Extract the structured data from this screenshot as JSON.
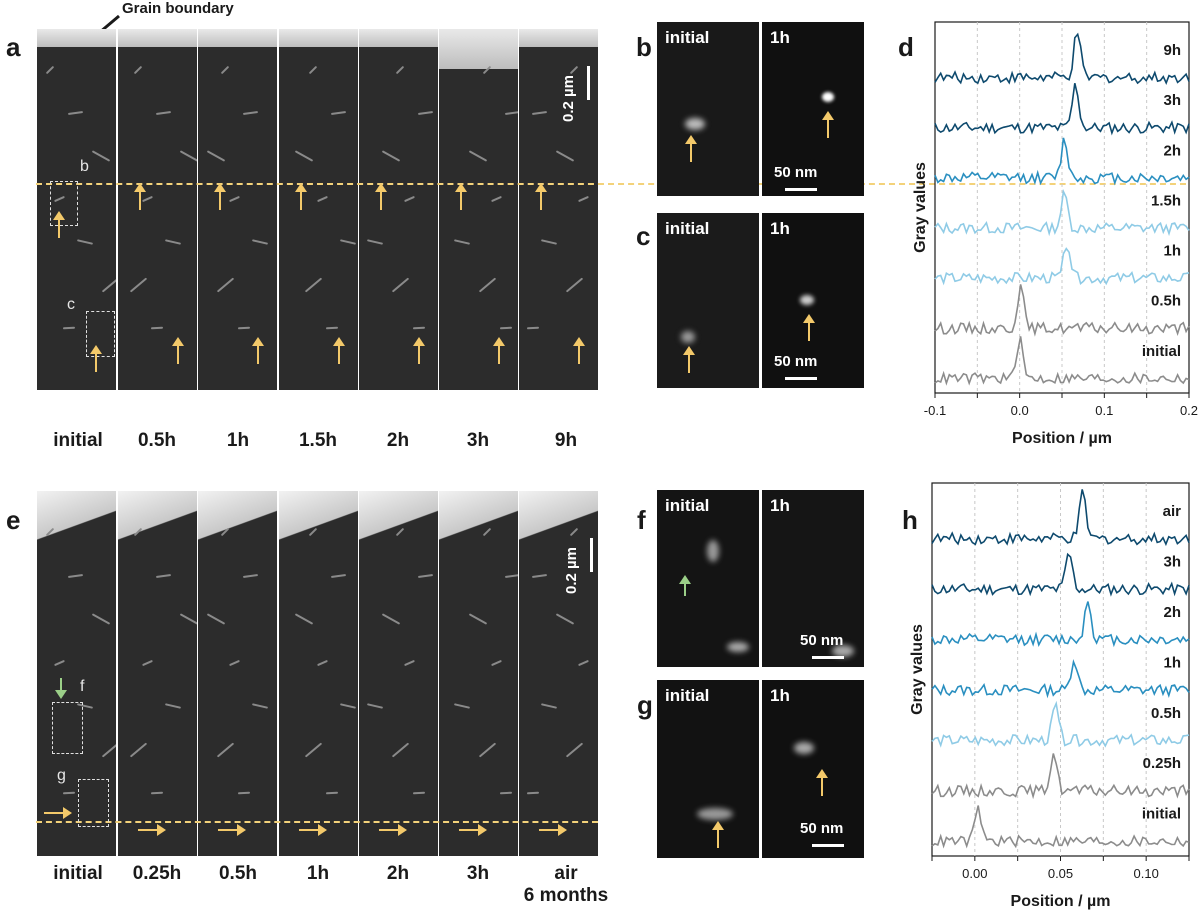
{
  "panel_a": {
    "letter": "a",
    "annotation": "Grain boundary",
    "scale_bar": "0.2 µm",
    "box_labels": [
      "b",
      "c"
    ],
    "frames": [
      "initial",
      "0.5h",
      "1h",
      "1.5h",
      "2h",
      "3h",
      "9h"
    ]
  },
  "panel_b": {
    "letter": "b",
    "left_label": "initial",
    "right_label": "1h",
    "scale_bar": "50 nm"
  },
  "panel_c": {
    "letter": "c",
    "left_label": "initial",
    "right_label": "1h",
    "scale_bar": "50 nm"
  },
  "panel_e": {
    "letter": "e",
    "scale_bar": "0.2 µm",
    "box_labels": [
      "f",
      "g"
    ],
    "frames": [
      "initial",
      "0.25h",
      "0.5h",
      "1h",
      "2h",
      "3h",
      "air"
    ],
    "last_frame_subtitle": "6 months"
  },
  "panel_f": {
    "letter": "f",
    "left_label": "initial",
    "right_label": "1h",
    "scale_bar": "50 nm"
  },
  "panel_g": {
    "letter": "g",
    "left_label": "initial",
    "right_label": "1h",
    "scale_bar": "50 nm"
  },
  "colors": {
    "profile_dark": "#0e4a6e",
    "profile_mid": "#2a8fc0",
    "profile_light": "#8fcbe6",
    "profile_gray": "#8c8c8c",
    "marker_yellow": "#f3c96a",
    "marker_green": "#9bcf88"
  },
  "chart_data": [
    {
      "panel": "d",
      "type": "line",
      "title": "",
      "xlabel": "Position / µm",
      "ylabel": "Gray values",
      "xlim": [
        -0.1,
        0.2
      ],
      "xticks": [
        -0.1,
        0.0,
        0.1,
        0.2
      ],
      "tick_labels": [
        "-0.1",
        "0.0",
        "0.1",
        "0.2"
      ],
      "grid": "vertical dashed",
      "series": [
        {
          "name": "9h",
          "peak_position": 0.068,
          "peak_height": 1.0
        },
        {
          "name": "3h",
          "peak_position": 0.066,
          "peak_height": 0.95
        },
        {
          "name": "2h",
          "peak_position": 0.053,
          "peak_height": 0.85
        },
        {
          "name": "1.5h",
          "peak_position": 0.053,
          "peak_height": 0.75
        },
        {
          "name": "1h",
          "peak_position": 0.056,
          "peak_height": 0.8
        },
        {
          "name": "0.5h",
          "peak_position": 0.001,
          "peak_height": 0.9
        },
        {
          "name": "initial",
          "peak_position": 0.0,
          "peak_height": 0.85
        }
      ]
    },
    {
      "panel": "h",
      "type": "line",
      "title": "",
      "xlabel": "Position / µm",
      "ylabel": "Gray values",
      "xlim": [
        -0.025,
        0.125
      ],
      "xticks": [
        0.0,
        0.05,
        0.1
      ],
      "tick_labels": [
        "0.00",
        "0.05",
        "0.10"
      ],
      "grid": "vertical dashed",
      "series": [
        {
          "name": "air",
          "peak_position": 0.063,
          "peak_height": 1.0
        },
        {
          "name": "3h",
          "peak_position": 0.055,
          "peak_height": 0.8
        },
        {
          "name": "2h",
          "peak_position": 0.066,
          "peak_height": 0.85
        },
        {
          "name": "1h",
          "peak_position": 0.058,
          "peak_height": 0.7
        },
        {
          "name": "0.5h",
          "peak_position": 0.047,
          "peak_height": 0.75
        },
        {
          "name": "0.25h",
          "peak_position": 0.046,
          "peak_height": 0.85
        },
        {
          "name": "initial",
          "peak_position": 0.002,
          "peak_height": 0.7
        }
      ]
    }
  ]
}
